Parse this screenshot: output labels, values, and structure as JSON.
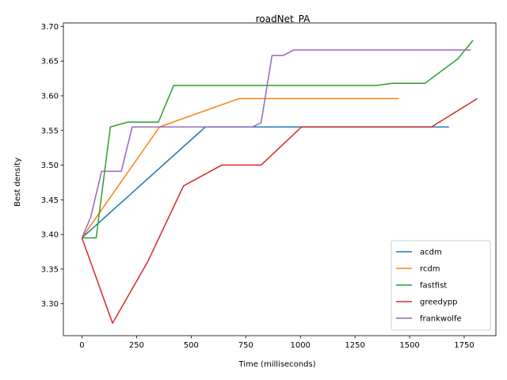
{
  "chart_data": {
    "type": "line",
    "title": "roadNet_PA",
    "xlabel": "Time (milliseconds)",
    "ylabel": "Best density",
    "xlim": [
      -85,
      1895
    ],
    "ylim": [
      3.254,
      3.705
    ],
    "xticks": [
      0,
      250,
      500,
      750,
      1000,
      1250,
      1500,
      1750
    ],
    "yticks": [
      3.3,
      3.35,
      3.4,
      3.45,
      3.5,
      3.55,
      3.6,
      3.65,
      3.7
    ],
    "ytick_labels": [
      "3.30",
      "3.35",
      "3.40",
      "3.45",
      "3.50",
      "3.55",
      "3.60",
      "3.65",
      "3.70"
    ],
    "grid": false,
    "legend": "lower right",
    "series": [
      {
        "name": "acdm",
        "color": "#1f77b4",
        "x": [
          0,
          565,
          1680
        ],
        "y": [
          3.395,
          3.555,
          3.555
        ]
      },
      {
        "name": "rcdm",
        "color": "#ff7f0e",
        "x": [
          0,
          355,
          720,
          1450
        ],
        "y": [
          3.395,
          3.555,
          3.596,
          3.596
        ]
      },
      {
        "name": "fastfist",
        "color": "#2ca02c",
        "x": [
          0,
          65,
          130,
          210,
          350,
          420,
          1350,
          1420,
          1570,
          1720,
          1790
        ],
        "y": [
          3.395,
          3.395,
          3.555,
          3.562,
          3.562,
          3.615,
          3.615,
          3.618,
          3.618,
          3.653,
          3.68
        ]
      },
      {
        "name": "greedypp",
        "color": "#d62728",
        "x": [
          0,
          140,
          300,
          465,
          640,
          820,
          1005,
          1600,
          1810
        ],
        "y": [
          3.395,
          3.272,
          3.36,
          3.47,
          3.5,
          3.5,
          3.555,
          3.555,
          3.596
        ]
      },
      {
        "name": "frankwolfe",
        "color": "#9467bd",
        "x": [
          0,
          40,
          90,
          180,
          230,
          780,
          820,
          870,
          920,
          970,
          1780
        ],
        "y": [
          3.395,
          3.425,
          3.491,
          3.491,
          3.555,
          3.555,
          3.561,
          3.658,
          3.658,
          3.666,
          3.666
        ]
      }
    ]
  }
}
